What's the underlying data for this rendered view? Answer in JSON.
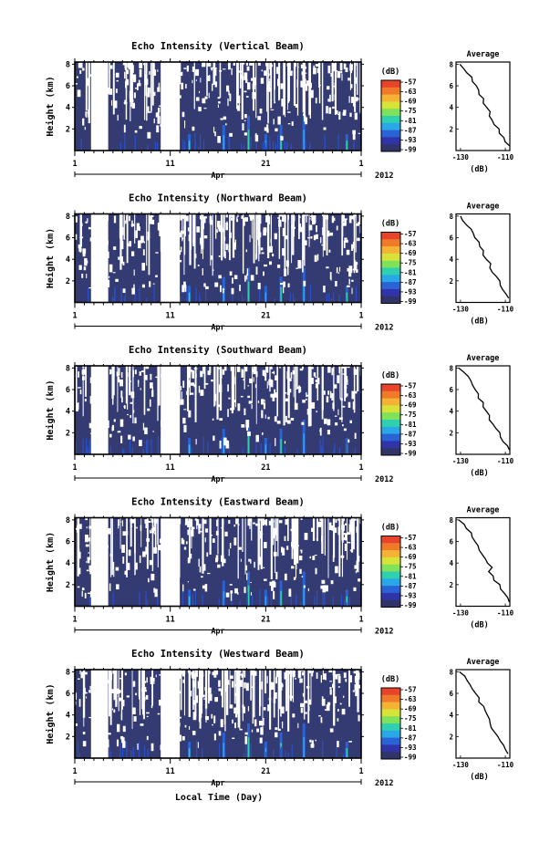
{
  "figure": {
    "xlabel": "Local Time (Day)",
    "month_label": "Apr",
    "year_label": "2012",
    "ylabel": "Height (km)",
    "colorbar_unit": "(dB)",
    "colorbar_ticks": [
      "-57",
      "-63",
      "-69",
      "-75",
      "-81",
      "-87",
      "-93",
      "-99"
    ],
    "colorbar_colors": [
      "#e8442a",
      "#f07a2a",
      "#f5b335",
      "#d8e33a",
      "#7fe25a",
      "#2ed0b0",
      "#2aa7e6",
      "#2a63d6",
      "#3134a8",
      "#303468"
    ],
    "x_ticks": [
      "1",
      "11",
      "21",
      "1"
    ],
    "y_ticks": [
      "2",
      "4",
      "6",
      "8"
    ],
    "avg_title": "Average",
    "avg_xlabel": "(dB)",
    "avg_x_ticks": [
      "-130",
      "-110"
    ],
    "avg_y_ticks": [
      "2",
      "4",
      "6",
      "8"
    ]
  },
  "panels": [
    {
      "title": "Echo Intensity (Vertical Beam)"
    },
    {
      "title": "Echo Intensity (Northward Beam)"
    },
    {
      "title": "Echo Intensity (Southward Beam)"
    },
    {
      "title": "Echo Intensity (Eastward Beam)"
    },
    {
      "title": "Echo Intensity (Westward Beam)"
    }
  ],
  "chart_data": {
    "type": "heatmap",
    "x_axis": {
      "label": "Local Time (Day)",
      "range": [
        "Apr 1 2012",
        "May 1 2012"
      ],
      "ticks": [
        "1",
        "11",
        "21",
        "1"
      ]
    },
    "y_axis": {
      "label": "Height (km)",
      "range": [
        0,
        8.2
      ],
      "ticks": [
        2,
        4,
        6,
        8
      ]
    },
    "color_scale": {
      "unit": "dB",
      "range": [
        -99,
        -57
      ],
      "ticks": [
        -57,
        -63,
        -69,
        -75,
        -81,
        -87,
        -93,
        -99
      ]
    },
    "beams": [
      "Vertical",
      "Northward",
      "Southward",
      "Eastward",
      "Westward"
    ],
    "data_gaps_days": [
      [
        2.7,
        4.5
      ],
      [
        10.0,
        12.0
      ]
    ],
    "average_profile": {
      "title": "Average",
      "xlabel": "(dB)",
      "xlim": [
        -132,
        -108
      ],
      "ylim": [
        0,
        8.2
      ],
      "height_km": [
        0.4,
        0.8,
        1.2,
        1.6,
        2.0,
        2.4,
        2.8,
        3.2,
        3.6,
        4.0,
        4.4,
        4.8,
        5.2,
        5.6,
        6.0,
        6.4,
        6.8,
        7.2,
        7.6,
        8.0
      ],
      "intensity_db": [
        -108.5,
        -109.5,
        -111.0,
        -112.5,
        -113.0,
        -114.5,
        -116.0,
        -117.0,
        -116.5,
        -118.0,
        -119.5,
        -120.0,
        -121.5,
        -122.0,
        -123.5,
        -124.5,
        -125.5,
        -127.0,
        -128.5,
        -130.5
      ]
    }
  }
}
